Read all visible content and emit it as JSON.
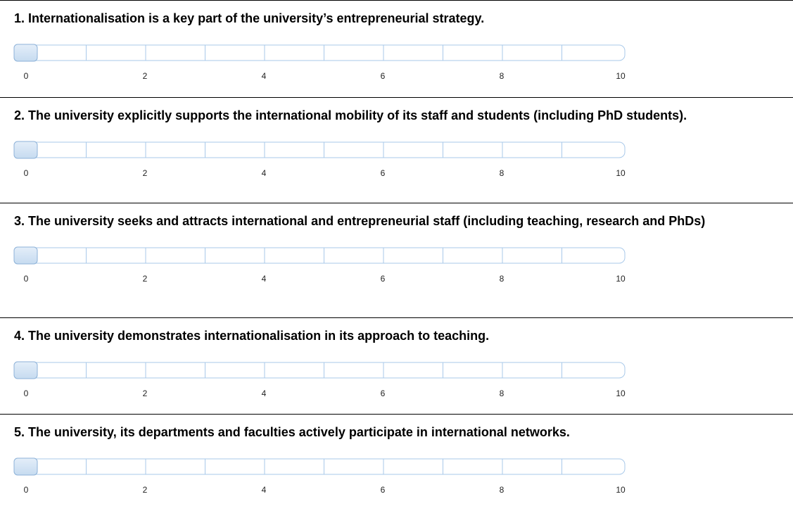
{
  "scale": {
    "min": 0,
    "max": 10,
    "labels": [
      0,
      2,
      4,
      6,
      8,
      10
    ]
  },
  "questions": [
    {
      "text": "1. Internationalisation is a key part of the university’s entrepreneurial strategy.",
      "value": 0
    },
    {
      "text": "2. The university explicitly supports the international mobility of its staff and students (including PhD students).",
      "value": 0
    },
    {
      "text": "3. The university seeks and attracts international and entrepreneurial staff (including teaching, research and PhDs)",
      "value": 0
    },
    {
      "text": "4. The university demonstrates internationalisation in its approach to teaching.",
      "value": 0
    },
    {
      "text": "5. The university, its departments and faculties actively participate in international networks.",
      "value": 0
    }
  ]
}
